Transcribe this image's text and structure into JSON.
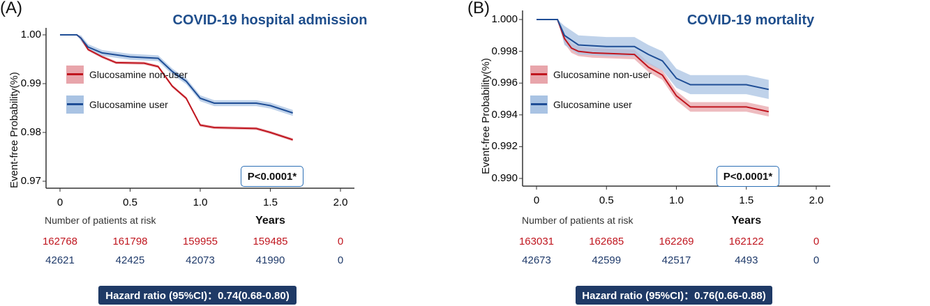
{
  "chart_data": [
    {
      "type": "line",
      "panel_label": "(A)",
      "title": "COVID-19 hospital admission",
      "xlabel": "Years",
      "ylabel": "Event-free Probability(%)",
      "xlim": [
        0,
        2.0
      ],
      "ylim": [
        0.97,
        1.0
      ],
      "x_ticks": [
        "0",
        "0.5",
        "1.0",
        "1.5",
        "2.0"
      ],
      "y_ticks": [
        "1.00",
        "0.99",
        "0.98",
        "0.97"
      ],
      "y_tick_values": [
        1.0,
        0.99,
        0.98,
        0.97
      ],
      "x_tick_values": [
        0,
        0.5,
        1.0,
        1.5,
        2.0
      ],
      "p_value": "P<0.0001*",
      "hazard_ratio": "Hazard ratio (95%CI)：0.74(0.68-0.80)",
      "risk_table_title": "Number of patients at risk",
      "legend": "left",
      "series": [
        {
          "name": "Glucosamine non-user",
          "color": "#c0161f",
          "band_color": "#e8a5ab",
          "ci_halfwidth": 0.0003,
          "x": [
            0,
            0.12,
            0.15,
            0.2,
            0.3,
            0.4,
            0.6,
            0.7,
            0.8,
            0.9,
            1.0,
            1.1,
            1.4,
            1.5,
            1.66
          ],
          "y": [
            1,
            1,
            0.9993,
            0.997,
            0.9955,
            0.9943,
            0.9942,
            0.9935,
            0.9895,
            0.987,
            0.9815,
            0.981,
            0.9808,
            0.98,
            0.9785
          ],
          "at_risk": [
            "162768",
            "161798",
            "159955",
            "159485",
            "0"
          ]
        },
        {
          "name": "Glucosamine user",
          "color": "#1f4e96",
          "band_color": "#a9c3e3",
          "ci_halfwidth": 0.0006,
          "x": [
            0,
            0.12,
            0.15,
            0.2,
            0.3,
            0.5,
            0.7,
            0.8,
            0.9,
            1.0,
            1.1,
            1.4,
            1.5,
            1.66
          ],
          "y": [
            1,
            1,
            0.9993,
            0.9975,
            0.9963,
            0.9955,
            0.9952,
            0.9925,
            0.9905,
            0.987,
            0.986,
            0.986,
            0.9855,
            0.984
          ],
          "at_risk": [
            "42621",
            "42425",
            "42073",
            "41990",
            "0"
          ]
        }
      ]
    },
    {
      "type": "line",
      "panel_label": "(B)",
      "title": "COVID-19 mortality",
      "xlabel": "Years",
      "ylabel": "Event-free Probability(%)",
      "xlim": [
        0,
        2.0
      ],
      "ylim": [
        0.99,
        1.0
      ],
      "x_ticks": [
        "0",
        "0.5",
        "1.0",
        "1.5",
        "2.0"
      ],
      "y_ticks": [
        "1.000",
        "0.998",
        "0.996",
        "0.994",
        "0.992",
        "0.990"
      ],
      "y_tick_values": [
        1.0,
        0.998,
        0.996,
        0.994,
        0.992,
        0.99
      ],
      "x_tick_values": [
        0,
        0.5,
        1.0,
        1.5,
        2.0
      ],
      "p_value": "P<0.0001*",
      "hazard_ratio": "Hazard ratio (95%CI)：0.76(0.66-0.88)",
      "risk_table_title": "Number of patients at risk",
      "legend": "left",
      "series": [
        {
          "name": "Glucosamine non-user",
          "color": "#c0161f",
          "band_color": "#e8a5ab",
          "ci_halfwidth": 0.0003,
          "x": [
            0,
            0.15,
            0.2,
            0.25,
            0.3,
            0.4,
            0.7,
            0.8,
            0.9,
            1.0,
            1.1,
            1.5,
            1.66
          ],
          "y": [
            1,
            1,
            0.9988,
            0.9982,
            0.998,
            0.9979,
            0.9978,
            0.997,
            0.9965,
            0.9952,
            0.9945,
            0.9945,
            0.9942
          ],
          "at_risk": [
            "163031",
            "162685",
            "162269",
            "162122",
            "0"
          ]
        },
        {
          "name": "Glucosamine user",
          "color": "#1f4e96",
          "band_color": "#a9c3e3",
          "ci_halfwidth": 0.0006,
          "x": [
            0,
            0.15,
            0.2,
            0.3,
            0.5,
            0.7,
            0.8,
            0.9,
            1.0,
            1.1,
            1.5,
            1.66
          ],
          "y": [
            1,
            1,
            0.999,
            0.9984,
            0.9983,
            0.9983,
            0.9978,
            0.9974,
            0.9963,
            0.9959,
            0.9959,
            0.9956
          ],
          "at_risk": [
            "42673",
            "42599",
            "42517",
            "4493",
            "0"
          ]
        }
      ]
    }
  ]
}
